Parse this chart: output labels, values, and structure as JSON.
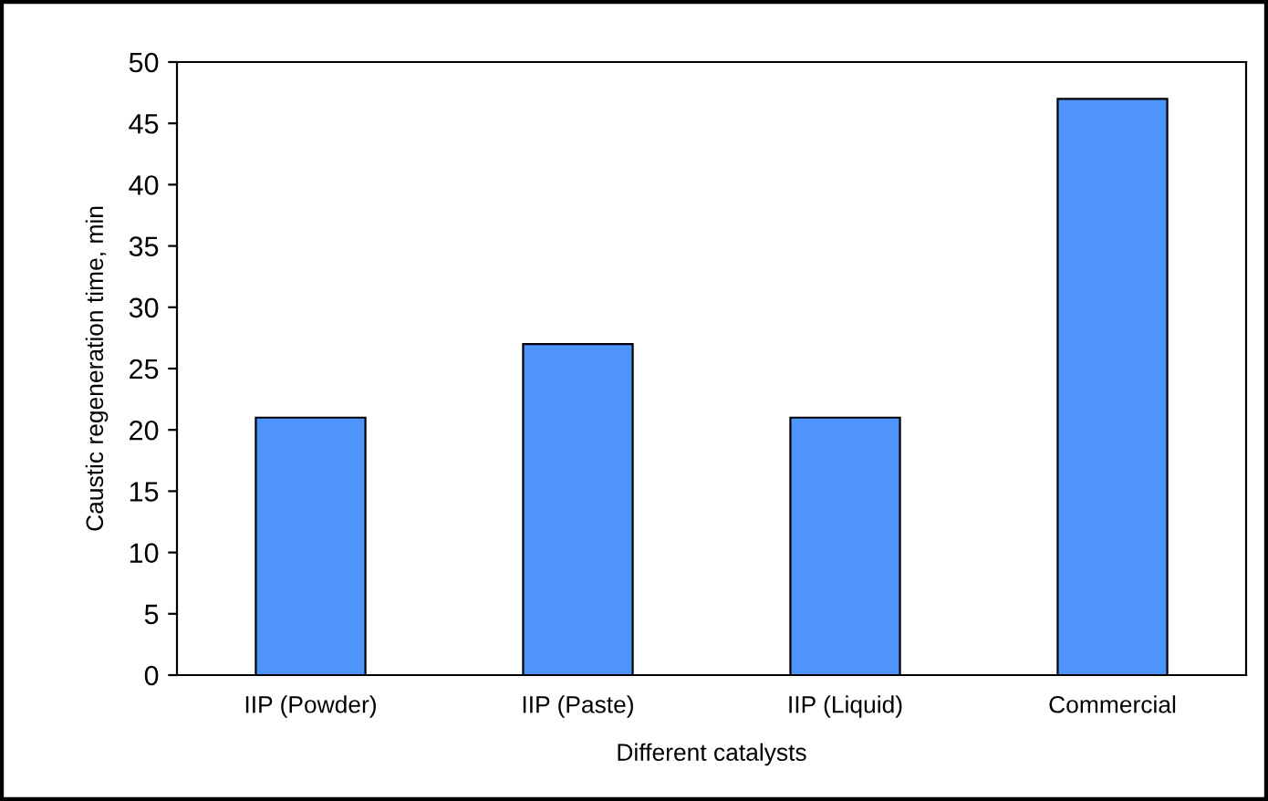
{
  "chart_data": {
    "type": "bar",
    "xlabel": "Different catalysts",
    "ylabel": "Caustic regeneration time, min",
    "categories": [
      "IIP (Powder)",
      "IIP (Paste)",
      "IIP (Liquid)",
      "Commercial"
    ],
    "values": [
      21,
      27,
      21,
      47
    ],
    "color": "#4f94fb",
    "ylim": [
      0,
      50
    ],
    "yticks": [
      0,
      5,
      10,
      15,
      20,
      25,
      30,
      35,
      40,
      45,
      50
    ],
    "grid": false
  }
}
